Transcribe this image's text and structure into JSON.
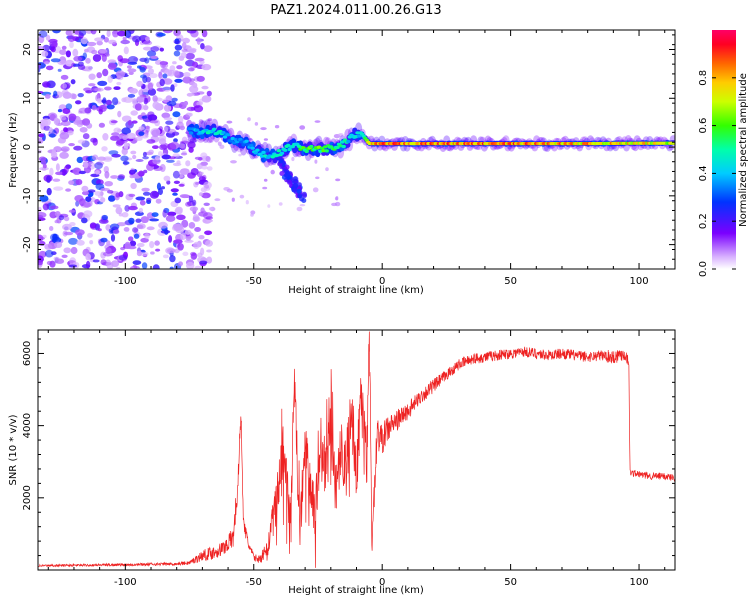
{
  "title": "PAZ1.2024.011.00.26.G13",
  "chart_data": [
    {
      "type": "heatmap",
      "xlabel": "Height of straight line (km)",
      "ylabel": "Frequency (Hz)",
      "xlim": [
        -134,
        114
      ],
      "ylim": [
        -25,
        24
      ],
      "xticks": [
        -100,
        -50,
        0,
        50,
        100
      ],
      "xtick_labels": [
        "-100",
        "-50",
        "0",
        "50",
        "100"
      ],
      "yticks": [
        -20,
        -10,
        0,
        10,
        20
      ],
      "ytick_labels": [
        "-20",
        "-10",
        "0",
        "10",
        "20"
      ],
      "colorbar": {
        "label": "Normalized spectral amplitude",
        "range": [
          0,
          1
        ],
        "ticks": [
          0,
          0.2,
          0.4,
          0.6,
          0.8
        ],
        "tick_labels": [
          "0.0",
          "0.2",
          "0.4",
          "0.6",
          "0.8"
        ]
      },
      "ridge": {
        "x": [
          -75,
          -65,
          -58,
          -52,
          -47,
          -42,
          -38,
          -34,
          -30,
          -26,
          -22,
          -18,
          -14,
          -11,
          -8,
          -5,
          0,
          20,
          40,
          60,
          80,
          100,
          114
        ],
        "y": [
          3.2,
          3.3,
          1.5,
          0.5,
          -1.5,
          -2.0,
          -0.5,
          0.3,
          -0.4,
          -0.5,
          -0.3,
          -0.2,
          1.0,
          2.5,
          2.8,
          0.7,
          0.7,
          0.7,
          0.7,
          0.7,
          0.7,
          0.8,
          0.8
        ],
        "amp": [
          0.45,
          0.5,
          0.4,
          0.4,
          0.45,
          0.5,
          0.5,
          0.55,
          0.6,
          0.65,
          0.6,
          0.55,
          0.5,
          0.45,
          0.45,
          0.8,
          0.9,
          0.92,
          0.9,
          0.9,
          0.85,
          0.8,
          0.8
        ]
      },
      "noise_region": {
        "x_from": -134,
        "x_to": -75,
        "y_from": -25,
        "y_to": 24,
        "amp_range": [
          0.05,
          0.3
        ]
      }
    },
    {
      "type": "line",
      "xlabel": "Height of straight line (km)",
      "ylabel": "SNR (10 * v/v)",
      "xlim": [
        -134,
        114
      ],
      "ylim": [
        0,
        6650
      ],
      "xticks": [
        -100,
        -50,
        0,
        50,
        100
      ],
      "xtick_labels": [
        "-100",
        "-50",
        "0",
        "50",
        "100"
      ],
      "yticks": [
        2000,
        4000,
        6000
      ],
      "ytick_labels": [
        "2000",
        "4000",
        "6000"
      ],
      "series": [
        {
          "color": "#ee2222",
          "x": [
            -134,
            -120,
            -100,
            -90,
            -80,
            -75,
            -70,
            -65,
            -62,
            -58,
            -56,
            -55,
            -54,
            -52,
            -50,
            -48,
            -45,
            -42,
            -40,
            -38,
            -36,
            -34,
            -33,
            -32,
            -30,
            -28,
            -26,
            -24,
            -22,
            -20,
            -18,
            -16,
            -14,
            -12,
            -10,
            -8,
            -6,
            -5,
            -4,
            -2,
            0,
            2,
            5,
            10,
            15,
            20,
            25,
            30,
            35,
            40,
            45,
            50,
            55,
            60,
            65,
            70,
            75,
            80,
            85,
            90,
            94,
            96,
            96.5,
            100,
            105,
            110,
            114
          ],
          "y": [
            120,
            130,
            150,
            160,
            170,
            200,
            400,
            500,
            600,
            900,
            2500,
            4500,
            1300,
            700,
            350,
            300,
            500,
            1500,
            2500,
            3300,
            1200,
            5300,
            2800,
            1000,
            3500,
            2300,
            1600,
            3500,
            2800,
            3800,
            2200,
            3300,
            2900,
            4300,
            2700,
            5000,
            2900,
            6500,
            600,
            3800,
            3600,
            3900,
            4100,
            4400,
            4800,
            5100,
            5400,
            5700,
            5850,
            5900,
            5950,
            6000,
            6050,
            6000,
            5950,
            6000,
            5950,
            5900,
            5950,
            5900,
            6000,
            5800,
            2700,
            2650,
            2600,
            2600,
            2550
          ],
          "jitter": [
            30,
            30,
            40,
            40,
            40,
            60,
            150,
            200,
            200,
            300,
            500,
            300,
            200,
            150,
            100,
            100,
            300,
            600,
            800,
            900,
            600,
            800,
            700,
            600,
            900,
            800,
            700,
            900,
            800,
            900,
            800,
            800,
            800,
            900,
            800,
            900,
            800,
            600,
            400,
            500,
            400,
            400,
            300,
            250,
            200,
            200,
            150,
            150,
            150,
            150,
            150,
            150,
            150,
            150,
            150,
            150,
            150,
            150,
            150,
            200,
            200,
            150,
            100,
            100,
            100,
            100,
            100
          ]
        }
      ]
    }
  ]
}
